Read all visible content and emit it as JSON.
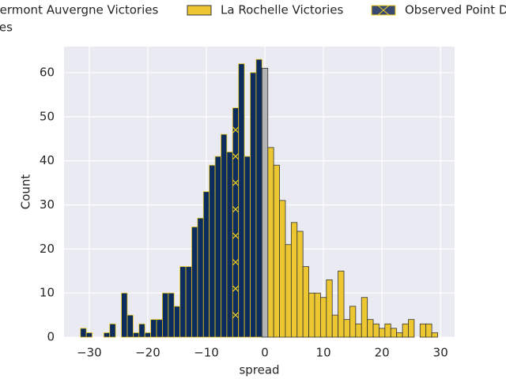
{
  "chart_data": {
    "type": "histogram",
    "xlabel": "spread",
    "ylabel": "Count",
    "xlim": [
      -34.3,
      32.4
    ],
    "ylim": [
      0,
      65.9
    ],
    "xticks": [
      {
        "value": -30,
        "label": "−30"
      },
      {
        "value": -20,
        "label": "−20"
      },
      {
        "value": -10,
        "label": "−10"
      },
      0,
      10,
      20,
      30
    ],
    "yticks": [
      0,
      10,
      20,
      30,
      40,
      50,
      60
    ],
    "grid": true,
    "series": [
      {
        "name": "Clermont Auvergne Victories",
        "color": "#0c2c5e",
        "edgecolor": "#e8c51a",
        "bins": [
          -31.5,
          -30.5,
          -29.5,
          -28.5,
          -27.5,
          -26.5,
          -25.5,
          -24.5,
          -23.5,
          -22.5,
          -21.5,
          -20.5,
          -19.5,
          -18.5,
          -17.5,
          -16.5,
          -15.5,
          -14.5,
          -13.5,
          -12.5,
          -11.5,
          -10.5,
          -9.5,
          -8.5,
          -7.5,
          -6.5,
          -5.5,
          -4.5,
          -3.5,
          -2.5,
          -1.5,
          -0.5
        ],
        "counts": [
          2,
          1,
          0,
          0,
          1,
          3,
          0,
          10,
          5,
          1,
          3,
          1,
          4,
          4,
          10,
          10,
          7,
          16,
          16,
          25,
          27,
          33,
          39,
          41,
          46,
          42,
          52,
          62,
          41,
          60,
          63
        ]
      },
      {
        "name": "La Rochelle Victories",
        "color": "#ecc731",
        "edgecolor": "#333333",
        "bins": [
          0.5,
          1.5,
          2.5,
          3.5,
          4.5,
          5.5,
          6.5,
          7.5,
          8.5,
          9.5,
          10.5,
          11.5,
          12.5,
          13.5,
          14.5,
          15.5,
          16.5,
          17.5,
          18.5,
          19.5,
          20.5,
          21.5,
          22.5,
          23.5,
          24.5,
          25.5,
          26.5,
          27.5,
          28.5,
          29.5
        ],
        "counts": [
          43,
          39,
          31,
          21,
          26,
          24,
          16,
          10,
          10,
          9,
          13,
          5,
          15,
          4,
          7,
          3,
          9,
          4,
          3,
          2,
          3,
          2,
          1,
          3,
          4,
          0,
          3,
          3,
          1
        ]
      },
      {
        "name": "Observed Point Differential",
        "type": "marker",
        "color": "#f0d020",
        "x": -5,
        "values": [
          5,
          11,
          17,
          23,
          29,
          35,
          41,
          47
        ]
      },
      {
        "name": "Ties",
        "color": "#b4b4b4",
        "edgecolor": "#333333",
        "bins": [
          -0.5,
          0.5
        ],
        "counts": [
          61
        ]
      }
    ]
  }
}
